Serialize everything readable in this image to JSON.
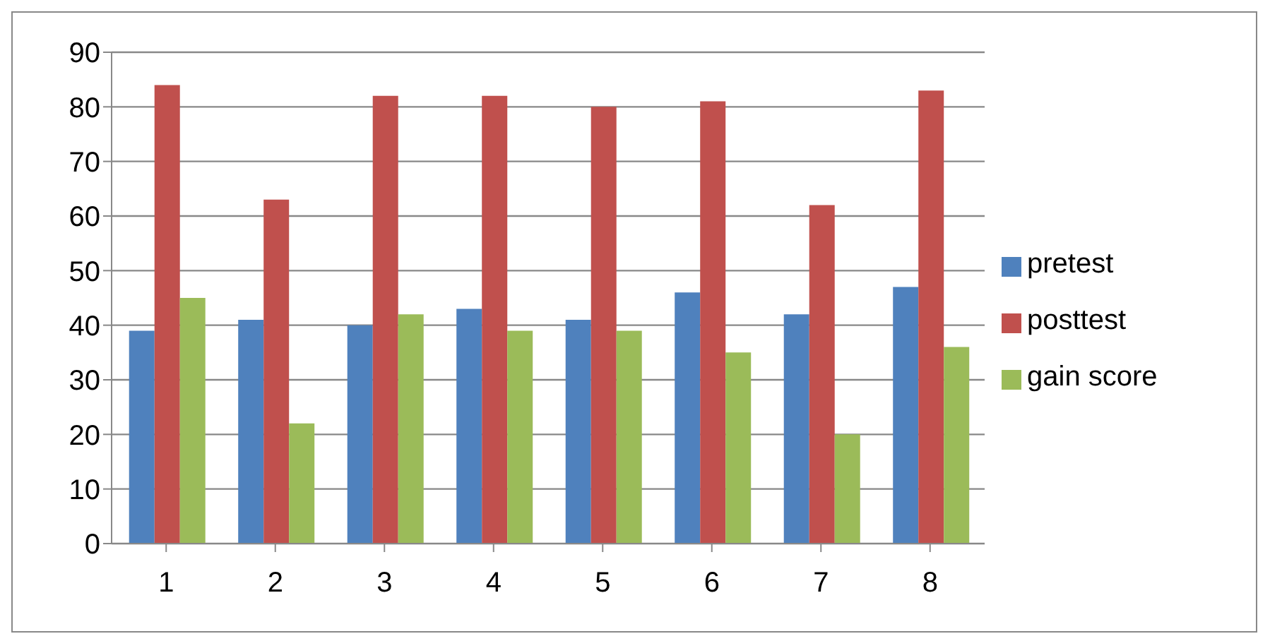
{
  "chart_data": {
    "type": "bar",
    "categories": [
      "1",
      "2",
      "3",
      "4",
      "5",
      "6",
      "7",
      "8"
    ],
    "series": [
      {
        "name": "pretest",
        "color": "#4f81bd",
        "values": [
          39,
          41,
          40,
          43,
          41,
          46,
          42,
          47
        ]
      },
      {
        "name": "posttest",
        "color": "#c0504d",
        "values": [
          84,
          63,
          82,
          82,
          80,
          81,
          62,
          83
        ]
      },
      {
        "name": "gain score",
        "color": "#9bbb59",
        "values": [
          45,
          22,
          42,
          39,
          39,
          35,
          20,
          36
        ]
      }
    ],
    "ylim": [
      0,
      90
    ],
    "yticks": [
      0,
      10,
      20,
      30,
      40,
      50,
      60,
      70,
      80,
      90
    ],
    "grid": "y",
    "legend": "right"
  }
}
